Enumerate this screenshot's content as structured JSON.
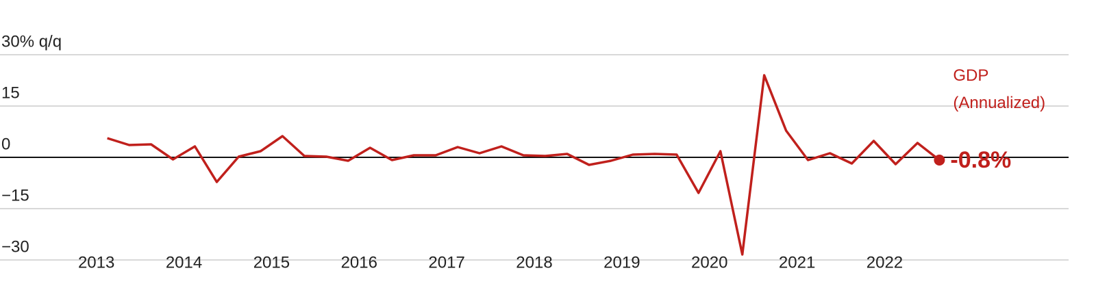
{
  "chart_data": {
    "type": "line",
    "x": [
      2013.125,
      2013.375,
      2013.625,
      2013.875,
      2014.125,
      2014.375,
      2014.625,
      2014.875,
      2015.125,
      2015.375,
      2015.625,
      2015.875,
      2016.125,
      2016.375,
      2016.625,
      2016.875,
      2017.125,
      2017.375,
      2017.625,
      2017.875,
      2018.125,
      2018.375,
      2018.625,
      2018.875,
      2019.125,
      2019.375,
      2019.625,
      2019.875,
      2020.125,
      2020.375,
      2020.625,
      2020.875,
      2021.125,
      2021.375,
      2021.625,
      2021.875,
      2022.125,
      2022.375,
      2022.625
    ],
    "series": [
      {
        "name": "GDP (Annualized)",
        "color": "#c0201c",
        "values": [
          5.6,
          3.6,
          3.8,
          -0.6,
          3.2,
          -7.2,
          0.2,
          1.8,
          6.2,
          0.4,
          0.2,
          -1.0,
          2.8,
          -0.8,
          0.6,
          0.6,
          3.0,
          1.2,
          3.2,
          0.6,
          0.4,
          1.0,
          -2.2,
          -1.0,
          0.8,
          1.0,
          0.8,
          -10.4,
          1.8,
          -28.4,
          24.0,
          7.8,
          -0.8,
          1.2,
          -1.8,
          4.8,
          -2.0,
          4.2,
          -0.8
        ],
        "value_labels": [
          null,
          null,
          null,
          null,
          null,
          null,
          null,
          null,
          null,
          null,
          null,
          null,
          null,
          null,
          null,
          null,
          null,
          null,
          null,
          null,
          null,
          null,
          null,
          null,
          null,
          null,
          null,
          null,
          null,
          null,
          null,
          null,
          null,
          null,
          null,
          null,
          null,
          null,
          "-0.8%"
        ]
      }
    ],
    "xlim": [
      2011.9,
      2024.1
    ],
    "xticks": [
      2013,
      2014,
      2015,
      2016,
      2017,
      2018,
      2019,
      2020,
      2021,
      2022
    ],
    "ylim": [
      -34,
      40
    ],
    "yticks": [
      {
        "value": 30,
        "label": "30% q/q"
      },
      15,
      0,
      {
        "value": -15,
        "label": "−15"
      },
      {
        "value": -30,
        "label": "−30"
      }
    ],
    "grid": true
  }
}
